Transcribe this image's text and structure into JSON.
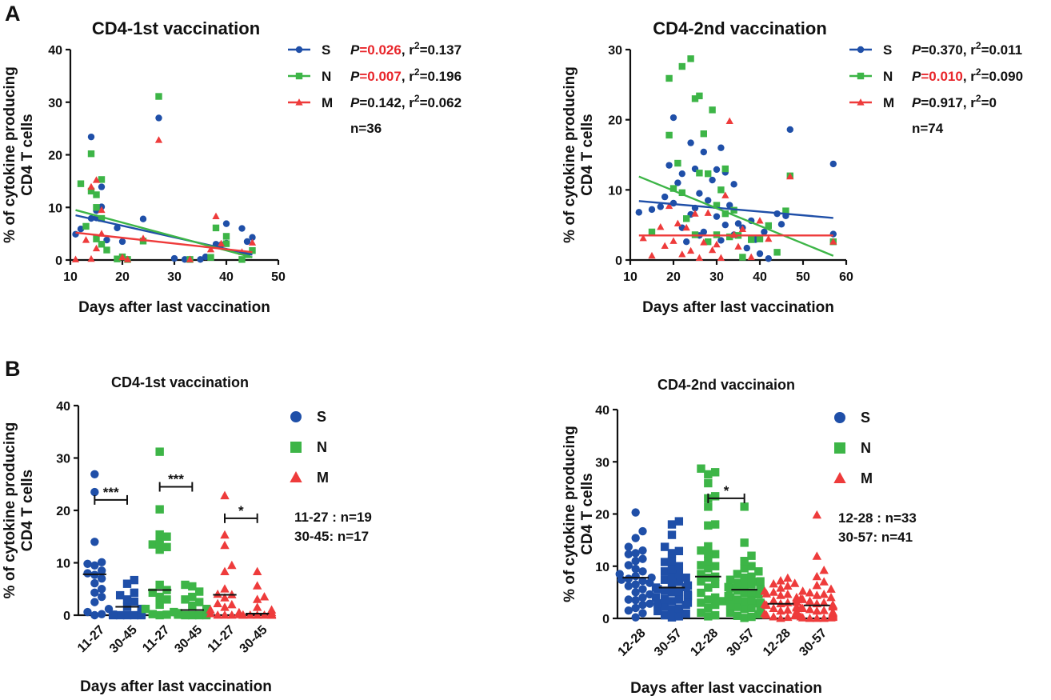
{
  "panel_labels": {
    "a": "A",
    "b": "B"
  },
  "colors": {
    "S": "#1f4fa8",
    "N": "#3db547",
    "M": "#ee3b3b",
    "highlight": "#e8262b",
    "text": "#111111"
  },
  "chart_data": [
    {
      "id": "A1",
      "type": "scatter",
      "title": "CD4-1st vaccination",
      "xlabel": "Days after last vaccination",
      "ylabel_lines": [
        "% of cytokine producing",
        "CD4 T cells"
      ],
      "xlim": [
        10,
        50
      ],
      "ylim": [
        0,
        40
      ],
      "xticks": [
        10,
        20,
        30,
        40,
        50
      ],
      "yticks": [
        0,
        10,
        20,
        30,
        40
      ],
      "n_label": "n=36",
      "series": [
        {
          "name": "S",
          "marker": "circle",
          "fit": {
            "x": [
              11,
              45
            ],
            "y": [
              8.5,
              1.0
            ]
          },
          "stat": {
            "p_prefix": "P",
            "p_value": "=0.026",
            "p_highlight": true,
            "r_label": ", r",
            "r_sup": "2",
            "r_value": "=0.137"
          },
          "x": [
            11,
            12,
            14,
            14,
            15,
            15,
            16,
            16,
            17,
            19,
            20,
            21,
            24,
            27,
            30,
            32,
            33,
            35,
            36,
            38,
            39,
            40,
            40,
            43,
            44,
            45
          ],
          "y": [
            4.9,
            5.9,
            23.4,
            7.9,
            9.4,
            8.0,
            10.1,
            13.9,
            3.8,
            6.1,
            3.5,
            0.1,
            7.8,
            27.0,
            0.3,
            0.1,
            0.1,
            0.1,
            0.6,
            3.0,
            2.9,
            6.9,
            3.2,
            6.0,
            3.5,
            4.3
          ]
        },
        {
          "name": "N",
          "marker": "square",
          "fit": {
            "x": [
              11,
              45
            ],
            "y": [
              9.5,
              0.5
            ]
          },
          "stat": {
            "p_prefix": "P",
            "p_value": "=0.007",
            "p_highlight": true,
            "r_label": ", r",
            "r_sup": "2",
            "r_value": "=0.196"
          },
          "x": [
            12,
            13,
            14,
            14,
            15,
            15,
            15,
            16,
            16,
            16,
            17,
            19,
            20,
            21,
            24,
            27,
            33,
            37,
            38,
            40,
            40,
            43,
            44,
            45
          ],
          "y": [
            14.5,
            6.4,
            20.2,
            13.1,
            12.4,
            10.0,
            4.0,
            15.3,
            7.9,
            3.0,
            1.9,
            0.2,
            0.6,
            0.1,
            3.6,
            31.1,
            0.1,
            0.5,
            6.1,
            3.1,
            4.5,
            0.1,
            1.0,
            1.8
          ]
        },
        {
          "name": "M",
          "marker": "triangle",
          "fit": {
            "x": [
              11,
              45
            ],
            "y": [
              5.2,
              1.5
            ]
          },
          "stat": {
            "p_prefix": "P",
            "p_value": "=0.142",
            "p_highlight": false,
            "r_label": ", r",
            "r_sup": "2",
            "r_value": "=0.062"
          },
          "x": [
            11,
            13,
            14,
            14,
            15,
            15,
            16,
            16,
            20,
            21,
            24,
            27,
            33,
            37,
            38,
            39,
            43,
            45
          ],
          "y": [
            0.1,
            3.8,
            0.2,
            13.9,
            15.2,
            2.2,
            9.5,
            5.0,
            0.5,
            0.1,
            4.1,
            22.8,
            0.1,
            2.0,
            8.3,
            3.1,
            1.5,
            3.3
          ]
        }
      ]
    },
    {
      "id": "A2",
      "type": "scatter",
      "title": "CD4-2nd vaccination",
      "xlabel": "Days after last vaccination",
      "ylabel_lines": [
        "% of cytokine producing",
        "CD4 T cells"
      ],
      "xlim": [
        10,
        60
      ],
      "ylim": [
        0,
        30
      ],
      "xticks": [
        10,
        20,
        30,
        40,
        50,
        60
      ],
      "yticks": [
        0,
        10,
        20,
        30
      ],
      "n_label": "n=74",
      "series": [
        {
          "name": "S",
          "marker": "circle",
          "fit": {
            "x": [
              12,
              57
            ],
            "y": [
              8.4,
              6.0
            ]
          },
          "stat": {
            "p_prefix": "P",
            "p_value": "=0.370",
            "p_highlight": false,
            "r_label": ", r",
            "r_sup": "2",
            "r_value": "=0.011"
          },
          "x": [
            12,
            15,
            17,
            18,
            19,
            20,
            20,
            21,
            22,
            22,
            23,
            24,
            24,
            25,
            25,
            26,
            26,
            27,
            27,
            28,
            29,
            30,
            30,
            31,
            31,
            32,
            32,
            33,
            34,
            34,
            35,
            36,
            37,
            38,
            39,
            40,
            41,
            42,
            44,
            45,
            46,
            47,
            57,
            57
          ],
          "y": [
            6.8,
            7.2,
            7.6,
            9.0,
            13.5,
            20.3,
            8.1,
            11.0,
            4.6,
            12.3,
            2.6,
            16.7,
            6.5,
            13.0,
            7.4,
            9.5,
            3.5,
            15.4,
            4.0,
            8.5,
            11.4,
            12.9,
            6.2,
            16.0,
            2.8,
            12.5,
            5.0,
            7.8,
            10.8,
            3.6,
            5.2,
            4.6,
            1.7,
            5.6,
            2.9,
            0.9,
            4.0,
            0.2,
            6.6,
            5.1,
            6.3,
            18.6,
            13.7,
            3.7
          ]
        },
        {
          "name": "N",
          "marker": "square",
          "fit": {
            "x": [
              12,
              57
            ],
            "y": [
              11.9,
              0.6
            ]
          },
          "stat": {
            "p_prefix": "P",
            "p_value": "=0.010",
            "p_highlight": true,
            "r_label": ", r",
            "r_sup": "2",
            "r_value": "=0.090"
          },
          "x": [
            15,
            19,
            19,
            20,
            21,
            22,
            22,
            23,
            24,
            25,
            25,
            26,
            26,
            27,
            28,
            28,
            29,
            30,
            30,
            31,
            32,
            32,
            33,
            34,
            35,
            36,
            38,
            40,
            42,
            44,
            46,
            47,
            57
          ],
          "y": [
            4.0,
            25.9,
            17.8,
            10.2,
            13.8,
            27.6,
            9.6,
            5.9,
            28.7,
            23.0,
            3.6,
            23.4,
            12.4,
            18.0,
            12.3,
            2.6,
            21.4,
            7.8,
            3.6,
            10.0,
            13.0,
            6.6,
            3.3,
            7.1,
            3.5,
            0.4,
            2.9,
            3.0,
            4.9,
            1.1,
            7.0,
            12.0,
            2.6
          ]
        },
        {
          "name": "M",
          "marker": "triangle",
          "fit": {
            "x": [
              12,
              57
            ],
            "y": [
              3.5,
              3.5
            ]
          },
          "stat": {
            "p_prefix": "P",
            "p_value": "=0.917",
            "p_highlight": false,
            "r_label": ", r",
            "r_sup": "2",
            "r_value": "=0"
          },
          "x": [
            13,
            15,
            17,
            18,
            19,
            20,
            21,
            22,
            23,
            24,
            25,
            26,
            27,
            28,
            29,
            30,
            31,
            32,
            33,
            34,
            35,
            36,
            38,
            40,
            42,
            47,
            57
          ],
          "y": [
            3.1,
            0.6,
            4.7,
            2.0,
            7.7,
            2.7,
            5.2,
            0.8,
            4.6,
            1.3,
            6.6,
            0.3,
            2.5,
            6.7,
            1.4,
            2.2,
            0.3,
            9.2,
            19.8,
            3.6,
            1.9,
            4.4,
            0.4,
            5.6,
            3.0,
            11.9,
            2.6
          ]
        }
      ]
    },
    {
      "id": "B1",
      "type": "scatter",
      "title": "CD4-1st vaccination",
      "xlabel": "Days after last vaccination",
      "ylabel_lines": [
        "% of cytokine producing",
        "CD4 T cells"
      ],
      "ylim": [
        0,
        40
      ],
      "yticks": [
        0,
        10,
        20,
        30,
        40
      ],
      "categories": [
        "11-27",
        "30-45",
        "11-27",
        "30-45",
        "11-27",
        "30-45"
      ],
      "groups": [
        {
          "series": "S",
          "marker": "circle",
          "median": 7.8,
          "values": [
            26.9,
            23.5,
            14.0,
            10.1,
            9.8,
            9.5,
            8.5,
            8.0,
            7.7,
            7.0,
            6.1,
            5.0,
            4.3,
            3.5,
            2.5,
            1.2,
            0.6,
            0.2,
            0.0
          ]
        },
        {
          "series": "S",
          "marker": "square",
          "median": 1.6,
          "values": [
            6.7,
            6.0,
            4.3,
            3.8,
            3.0,
            2.6,
            1.6,
            1.2,
            0.6,
            0.2,
            0.1,
            0.1,
            0.0,
            0.0,
            0.0,
            0.0,
            0.0
          ]
        },
        {
          "series": "N",
          "marker": "square",
          "median": 4.8,
          "values": [
            31.2,
            20.2,
            15.4,
            15.0,
            14.0,
            13.5,
            13.0,
            12.5,
            5.8,
            4.8,
            4.3,
            3.5,
            3.0,
            2.0,
            1.2,
            0.6,
            0.2,
            0.1,
            0.0
          ]
        },
        {
          "series": "N",
          "marker": "square",
          "median": 1.0,
          "values": [
            5.8,
            5.5,
            4.5,
            3.5,
            3.0,
            2.5,
            1.8,
            1.2,
            1.0,
            0.6,
            0.4,
            0.2,
            0.1,
            0.0,
            0.0,
            0.0,
            0.0
          ]
        },
        {
          "series": "M",
          "marker": "triangle",
          "median": 3.9,
          "values": [
            22.8,
            15.3,
            13.3,
            9.5,
            8.3,
            5.0,
            4.0,
            3.9,
            3.3,
            2.2,
            2.0,
            1.5,
            1.0,
            0.5,
            0.3,
            0.1,
            0.0,
            0.0,
            0.0
          ]
        },
        {
          "series": "M",
          "marker": "triangle",
          "median": 0.3,
          "values": [
            8.3,
            5.6,
            3.5,
            3.0,
            1.5,
            1.0,
            0.5,
            0.2,
            0.1,
            0.0,
            0.0,
            0.0,
            0.0,
            0.0,
            0.0,
            0.0,
            0.0
          ]
        }
      ],
      "significance": [
        {
          "from": 0,
          "to": 1,
          "y": 22.0,
          "label": "***"
        },
        {
          "from": 2,
          "to": 3,
          "y": 24.5,
          "label": "***"
        },
        {
          "from": 4,
          "to": 5,
          "y": 18.5,
          "label": "*"
        }
      ],
      "legend": [
        {
          "name": "S",
          "marker": "circle"
        },
        {
          "name": "N",
          "marker": "square"
        },
        {
          "name": "M",
          "marker": "triangle"
        }
      ],
      "n_lines": [
        {
          "range": "11-27",
          "sep": " : ",
          "n": "n=19"
        },
        {
          "range": "30-45",
          "sep": ": ",
          "n": "n=17"
        }
      ]
    },
    {
      "id": "B2",
      "type": "scatter",
      "title": "CD4-2nd vaccinaion",
      "xlabel": "Days after last vaccination",
      "ylabel_lines": [
        "% of cytokine producing",
        "CD4 T cells"
      ],
      "ylim": [
        0,
        40
      ],
      "yticks": [
        0,
        10,
        20,
        30,
        40
      ],
      "categories": [
        "12-28",
        "30-57",
        "12-28",
        "30-57",
        "12-28",
        "30-57"
      ],
      "groups": [
        {
          "series": "S",
          "marker": "circle",
          "median": 7.8,
          "values": [
            20.3,
            16.7,
            15.4,
            13.7,
            13.0,
            12.5,
            12.3,
            11.4,
            11.0,
            10.2,
            9.5,
            9.0,
            8.5,
            8.1,
            7.8,
            7.6,
            7.4,
            7.2,
            6.8,
            6.5,
            6.2,
            5.6,
            5.0,
            4.6,
            4.0,
            3.6,
            3.5,
            2.8,
            2.6,
            2.0,
            1.5,
            1.0,
            0.2
          ]
        },
        {
          "series": "S",
          "marker": "square",
          "median": 5.9,
          "values": [
            18.6,
            18.0,
            16.0,
            13.7,
            12.9,
            12.5,
            11.0,
            10.8,
            10.0,
            9.5,
            9.0,
            8.5,
            8.0,
            7.8,
            7.4,
            7.0,
            6.6,
            6.3,
            6.0,
            5.9,
            5.6,
            5.3,
            5.1,
            5.0,
            4.6,
            4.3,
            4.0,
            3.7,
            3.6,
            3.3,
            3.0,
            2.9,
            2.6,
            2.2,
            1.9,
            1.7,
            1.4,
            0.9,
            0.6,
            0.4,
            0.2
          ]
        },
        {
          "series": "N",
          "marker": "square",
          "median": 8.0,
          "values": [
            28.7,
            28.0,
            27.6,
            25.9,
            23.4,
            23.0,
            21.4,
            18.0,
            17.8,
            13.8,
            13.0,
            12.4,
            12.3,
            11.0,
            10.2,
            10.0,
            9.6,
            8.5,
            8.0,
            7.8,
            7.1,
            6.6,
            5.9,
            4.9,
            4.0,
            3.6,
            3.3,
            3.0,
            2.6,
            2.0,
            1.1,
            0.6,
            0.4
          ]
        },
        {
          "series": "N",
          "marker": "square",
          "median": 5.5,
          "values": [
            21.4,
            14.5,
            12.0,
            11.0,
            10.0,
            9.6,
            9.0,
            8.5,
            8.0,
            7.8,
            7.4,
            7.1,
            7.0,
            6.8,
            6.6,
            6.3,
            6.0,
            5.8,
            5.6,
            5.5,
            5.3,
            5.0,
            4.9,
            4.6,
            4.3,
            4.0,
            3.6,
            3.5,
            3.3,
            3.0,
            2.9,
            2.6,
            2.2,
            2.0,
            1.8,
            1.4,
            1.1,
            0.8,
            0.5,
            0.3,
            0.1
          ]
        },
        {
          "series": "M",
          "marker": "triangle",
          "median": 2.8,
          "values": [
            7.7,
            7.2,
            6.7,
            6.6,
            6.2,
            5.8,
            5.2,
            5.0,
            4.7,
            4.6,
            4.4,
            4.0,
            3.6,
            3.4,
            3.1,
            3.0,
            2.8,
            2.7,
            2.5,
            2.2,
            2.0,
            1.9,
            1.6,
            1.4,
            1.3,
            1.1,
            0.9,
            0.8,
            0.6,
            0.5,
            0.3,
            0.2,
            0.0
          ]
        },
        {
          "series": "M",
          "marker": "triangle",
          "median": 2.5,
          "values": [
            19.8,
            11.9,
            9.2,
            8.0,
            7.0,
            6.3,
            5.6,
            5.2,
            4.9,
            4.6,
            4.4,
            4.0,
            3.8,
            3.6,
            3.3,
            3.0,
            2.8,
            2.6,
            2.5,
            2.3,
            2.2,
            2.0,
            1.9,
            1.7,
            1.5,
            1.4,
            1.2,
            1.0,
            0.9,
            0.8,
            0.6,
            0.5,
            0.4,
            0.3,
            0.3,
            0.2,
            0.1,
            0.1,
            0.0,
            0.0,
            0.0
          ]
        }
      ],
      "significance": [
        {
          "from": 2,
          "to": 3,
          "y": 23.0,
          "label": "*"
        }
      ],
      "legend": [
        {
          "name": "S",
          "marker": "circle"
        },
        {
          "name": "N",
          "marker": "square"
        },
        {
          "name": "M",
          "marker": "triangle"
        }
      ],
      "n_lines": [
        {
          "range": "12-28",
          "sep": " : ",
          "n": "n=33"
        },
        {
          "range": "30-57",
          "sep": ": ",
          "n": "n=41"
        }
      ]
    }
  ]
}
